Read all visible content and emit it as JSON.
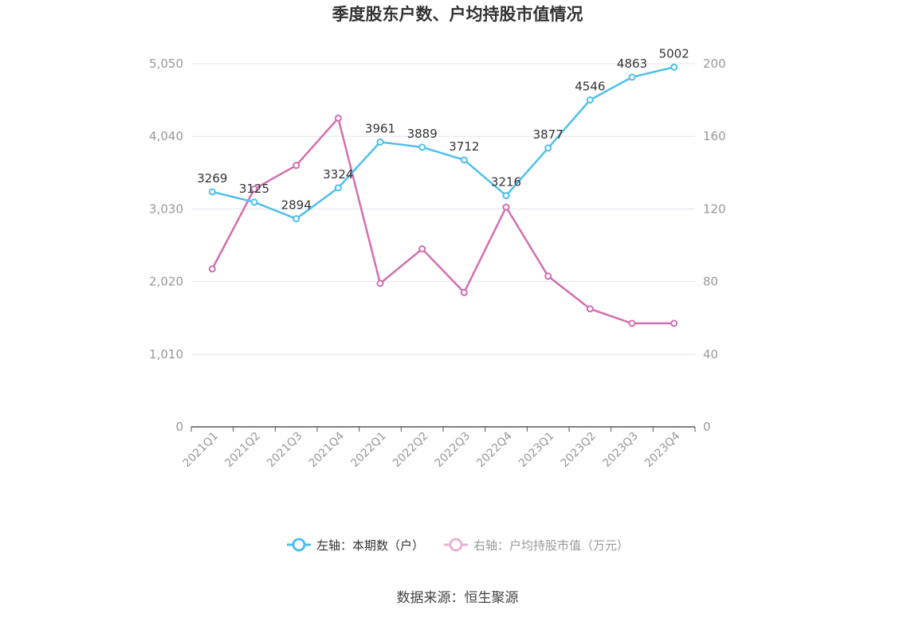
{
  "title": "季度股东户数、户均持股市值情况",
  "source": "数据来源：恒生聚源",
  "legend": {
    "left_label": "左轴：本期数（户）",
    "right_label": "右轴：户均持股市值（万元）"
  },
  "colors": {
    "series_left": "#4fbfec",
    "series_right": "#d36eb1",
    "axis_text": "#999999",
    "grid": "#dfe6ee",
    "axis_line": "#555555"
  },
  "chart_data": {
    "type": "line",
    "title": "季度股东户数、户均持股市值情况",
    "categories": [
      "2021Q1",
      "2021Q2",
      "2021Q3",
      "2021Q4",
      "2022Q1",
      "2022Q2",
      "2022Q3",
      "2022Q4",
      "2023Q1",
      "2023Q2",
      "2023Q3",
      "2023Q4"
    ],
    "y_left": {
      "min": 0,
      "max": 5050,
      "ticks": [
        0,
        1010,
        2020,
        3030,
        4040,
        5050
      ],
      "tick_labels": [
        "0",
        "1,010",
        "2,020",
        "3,030",
        "4,040",
        "5,050"
      ]
    },
    "y_right": {
      "min": 0,
      "max": 200,
      "ticks": [
        0,
        40,
        80,
        120,
        160,
        200
      ],
      "tick_labels": [
        "0",
        "40",
        "80",
        "120",
        "160",
        "200"
      ]
    },
    "grid": true,
    "legend_position": "bottom",
    "series": [
      {
        "name": "左轴：本期数（户）",
        "axis": "left",
        "show_labels": true,
        "values": [
          3269,
          3125,
          2894,
          3324,
          3961,
          3889,
          3712,
          3216,
          3877,
          4546,
          4863,
          5002
        ]
      },
      {
        "name": "右轴：户均持股市值（万元）",
        "axis": "right",
        "show_labels": false,
        "values": [
          87,
          131,
          144,
          170,
          79,
          98,
          74,
          121,
          83,
          65,
          57,
          57
        ]
      }
    ]
  }
}
